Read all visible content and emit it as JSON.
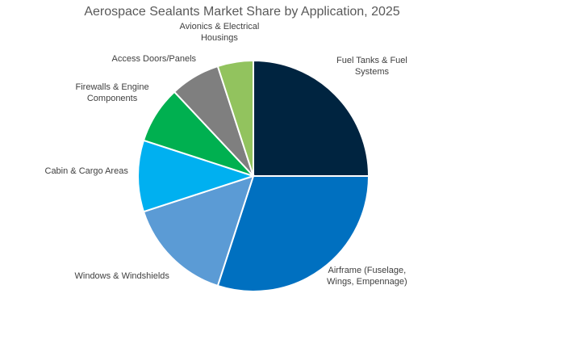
{
  "chart_data": {
    "type": "pie",
    "title": "Aerospace Sealants Market Share by Application, 2025",
    "start_angle_deg": 0,
    "direction": "clockwise",
    "slices": [
      {
        "label_lines": [
          "Fuel Tanks & Fuel",
          "Systems"
        ],
        "value": 25,
        "color": "#002440"
      },
      {
        "label_lines": [
          "Airframe (Fuselage,",
          "Wings, Empennage)"
        ],
        "value": 30,
        "color": "#0070C0"
      },
      {
        "label_lines": [
          "Windows & Windshields"
        ],
        "value": 15,
        "color": "#5B9BD5"
      },
      {
        "label_lines": [
          "Cabin & Cargo Areas"
        ],
        "value": 10,
        "color": "#00B0F0"
      },
      {
        "label_lines": [
          "Firewalls & Engine",
          "Components"
        ],
        "value": 8,
        "color": "#00B050"
      },
      {
        "label_lines": [
          "Access Doors/Panels"
        ],
        "value": 7,
        "color": "#7F7F7F"
      },
      {
        "label_lines": [
          "Avionics & Electrical",
          "Housings"
        ],
        "value": 5,
        "color": "#92C35E"
      }
    ]
  }
}
